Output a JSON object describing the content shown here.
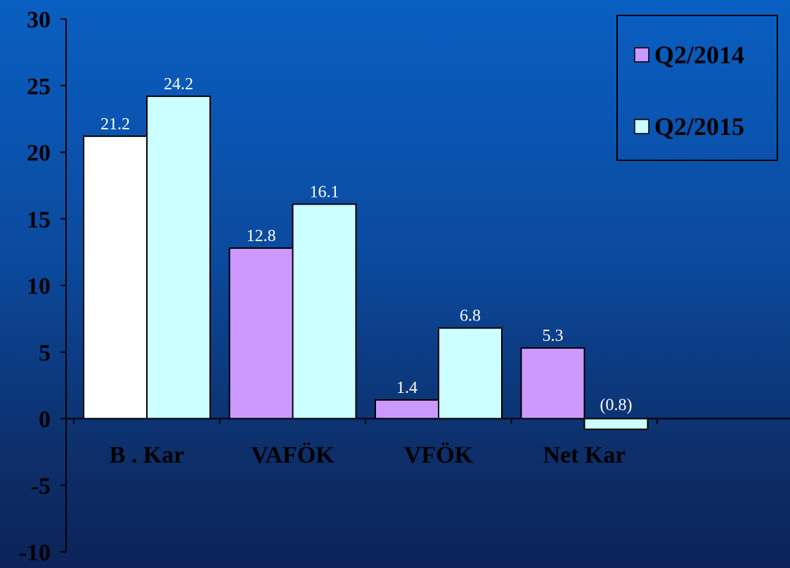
{
  "chart_data": {
    "type": "bar",
    "categories": [
      "B . Kar",
      "VAFÖK",
      "VFÖK",
      "Net Kar"
    ],
    "series": [
      {
        "name": "Q2/2014",
        "values": [
          21.2,
          12.8,
          1.4,
          5.3
        ],
        "labels": [
          "21.2",
          "12.8",
          "1.4",
          "5.3"
        ]
      },
      {
        "name": "Q2/2015",
        "values": [
          24.2,
          16.1,
          6.8,
          -0.8
        ],
        "labels": [
          "24.2",
          "16.1",
          "6.8",
          "(0.8)"
        ]
      }
    ],
    "ylim": [
      -10,
      30
    ],
    "yticks": [
      "30",
      "25",
      "20",
      "15",
      "10",
      "5",
      "0",
      "-5",
      "-10"
    ],
    "bar_overrides": {
      "0-0": "#ffffff"
    },
    "colors": {
      "series0": "#cc99ff",
      "series1": "#ccffff",
      "text": "#000000",
      "data_label": "#ffffff"
    },
    "legend_position": "top-right",
    "grid": false
  }
}
